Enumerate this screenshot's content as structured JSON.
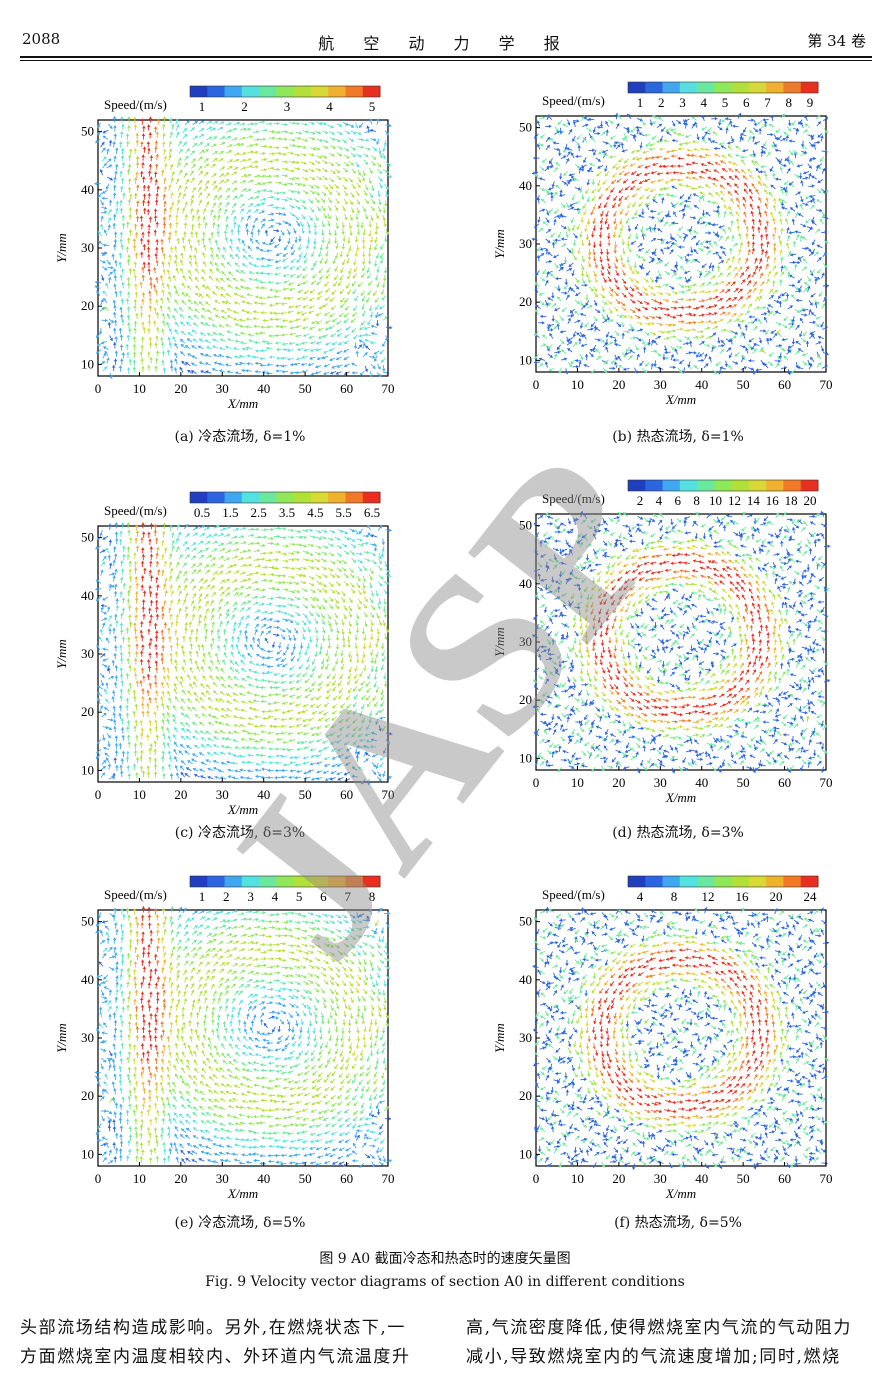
{
  "header": {
    "page_number": "2088",
    "journal": "航 空 动 力 学 报",
    "volume": "第 34 卷"
  },
  "watermark": "JASP",
  "figure": {
    "caption_cn": "图 9   A0 截面冷态和热态时的速度矢量图",
    "caption_en": "Fig. 9    Velocity vector diagrams of section A0 in different conditions"
  },
  "panels": [
    {
      "id": "a",
      "caption": "(a) 冷态流场, δ=1%",
      "colorbar_title": "Speed/(m/s)",
      "colorbar_ticks": [
        "1",
        "2",
        "3",
        "4",
        "5"
      ],
      "vmax": 5.5,
      "regime": "cold"
    },
    {
      "id": "b",
      "caption": "(b) 热态流场, δ=1%",
      "colorbar_title": "Speed/(m/s)",
      "colorbar_ticks": [
        "1",
        "2",
        "3",
        "4",
        "5",
        "6",
        "7",
        "8",
        "9"
      ],
      "vmax": 9.5,
      "regime": "hot"
    },
    {
      "id": "c",
      "caption": "(c) 冷态流场, δ=3%",
      "colorbar_title": "Speed/(m/s)",
      "colorbar_ticks": [
        "0.5",
        "1.5",
        "2.5",
        "3.5",
        "4.5",
        "5.5",
        "6.5"
      ],
      "vmax": 7,
      "regime": "cold"
    },
    {
      "id": "d",
      "caption": "(d) 热态流场, δ=3%",
      "colorbar_title": "Speed/(m/s)",
      "colorbar_ticks": [
        "2",
        "4",
        "6",
        "8",
        "10",
        "12",
        "14",
        "16",
        "18",
        "20"
      ],
      "vmax": 21,
      "regime": "hot"
    },
    {
      "id": "e",
      "caption": "(e) 冷态流场, δ=5%",
      "colorbar_title": "Speed/(m/s)",
      "colorbar_ticks": [
        "1",
        "2",
        "3",
        "4",
        "5",
        "6",
        "7",
        "8"
      ],
      "vmax": 8.5,
      "regime": "cold"
    },
    {
      "id": "f",
      "caption": "(f) 热态流场, δ=5%",
      "colorbar_title": "Speed/(m/s)",
      "colorbar_ticks": [
        "4",
        "8",
        "12",
        "16",
        "20",
        "24"
      ],
      "vmax": 26,
      "regime": "hot"
    }
  ],
  "axes": {
    "xlabel": "X/mm",
    "ylabel": "Y/mm",
    "xticks": [
      "0",
      "10",
      "20",
      "30",
      "40",
      "50",
      "60",
      "70"
    ],
    "yticks": [
      "10",
      "20",
      "30",
      "40",
      "50"
    ],
    "xlim": [
      0,
      70
    ],
    "ylim": [
      8,
      52
    ]
  },
  "body_text": {
    "left": [
      "头部流场结构造成影响。另外,在燃烧状态下,一",
      "方面燃烧室内温度相较内、外环道内气流温度升"
    ],
    "right": [
      "高,气流密度降低,使得燃烧室内气流的气动阻力",
      "减小,导致燃烧室内的气流速度增加;同时,燃烧"
    ]
  }
}
